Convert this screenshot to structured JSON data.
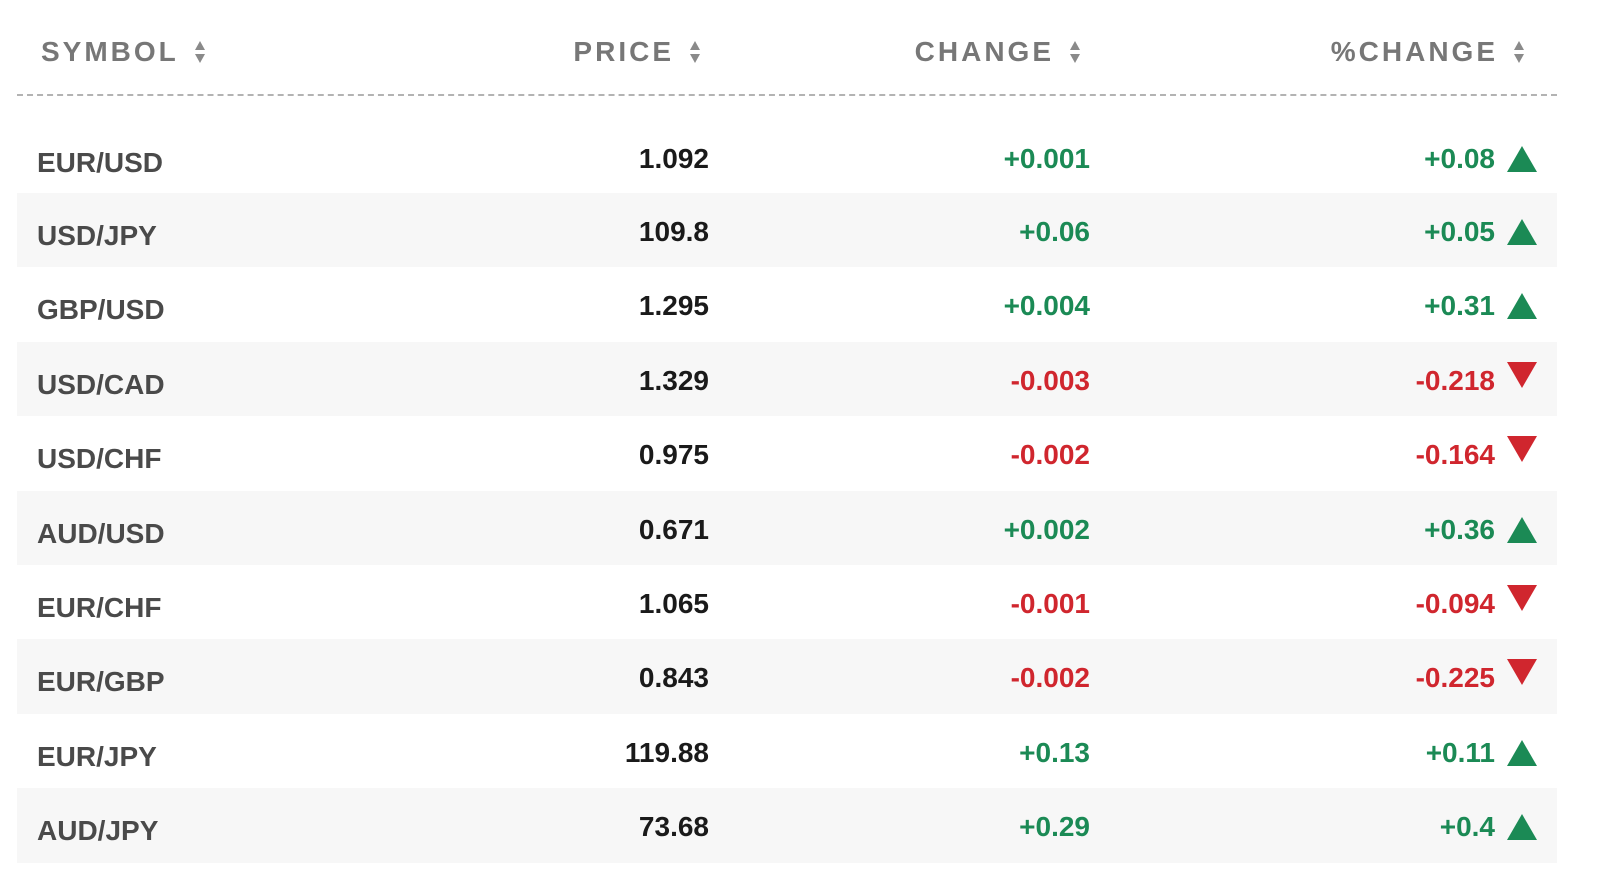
{
  "header": {
    "symbol": "SYMBOL",
    "price": "PRICE",
    "change": "CHANGE",
    "pct_change": "%CHANGE"
  },
  "colors": {
    "positive": "#1b8a55",
    "negative": "#d0262e",
    "header_text": "#777777",
    "symbol_text": "#4a4a4a",
    "row_stripe": "#f7f7f7"
  },
  "rows": [
    {
      "symbol": "EUR/USD",
      "price": "1.092",
      "change": "+0.001",
      "pct_change": "+0.08",
      "direction": "up"
    },
    {
      "symbol": "USD/JPY",
      "price": "109.8",
      "change": "+0.06",
      "pct_change": "+0.05",
      "direction": "up"
    },
    {
      "symbol": "GBP/USD",
      "price": "1.295",
      "change": "+0.004",
      "pct_change": "+0.31",
      "direction": "up"
    },
    {
      "symbol": "USD/CAD",
      "price": "1.329",
      "change": "-0.003",
      "pct_change": "-0.218",
      "direction": "down"
    },
    {
      "symbol": "USD/CHF",
      "price": "0.975",
      "change": "-0.002",
      "pct_change": "-0.164",
      "direction": "down"
    },
    {
      "symbol": "AUD/USD",
      "price": "0.671",
      "change": "+0.002",
      "pct_change": "+0.36",
      "direction": "up"
    },
    {
      "symbol": "EUR/CHF",
      "price": "1.065",
      "change": "-0.001",
      "pct_change": "-0.094",
      "direction": "down"
    },
    {
      "symbol": "EUR/GBP",
      "price": "0.843",
      "change": "-0.002",
      "pct_change": "-0.225",
      "direction": "down"
    },
    {
      "symbol": "EUR/JPY",
      "price": "119.88",
      "change": "+0.13",
      "pct_change": "+0.11",
      "direction": "up"
    },
    {
      "symbol": "AUD/JPY",
      "price": "73.68",
      "change": "+0.29",
      "pct_change": "+0.4",
      "direction": "up"
    }
  ]
}
